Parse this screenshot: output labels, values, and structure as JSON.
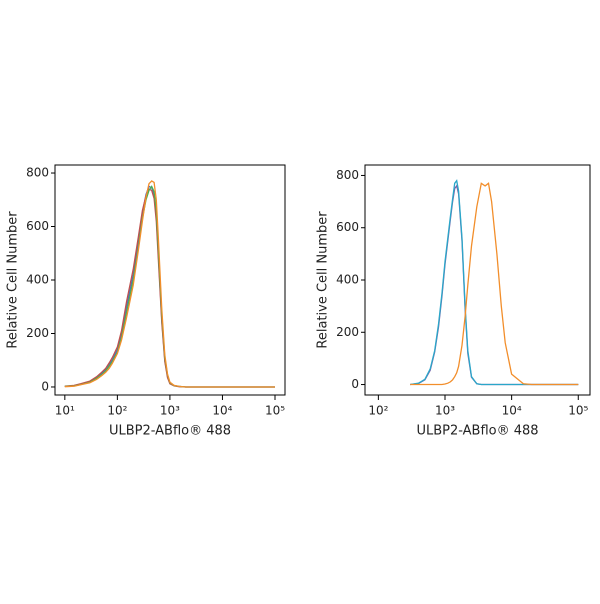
{
  "chart_data": [
    {
      "type": "line",
      "log_x": true,
      "xlabel": "ULBP2-ABflo® 488",
      "ylabel": "Relative Cell Number",
      "xlim": [
        6.5,
        155000
      ],
      "ylim": [
        -30,
        830
      ],
      "xticks": [
        {
          "value": 10,
          "label": "10¹"
        },
        {
          "value": 100,
          "label": "10²"
        },
        {
          "value": 1000,
          "label": "10³"
        },
        {
          "value": 10000,
          "label": "10⁴"
        },
        {
          "value": 100000,
          "label": "10⁵"
        }
      ],
      "yticks": [
        0,
        200,
        400,
        600,
        800
      ],
      "x": [
        10,
        15,
        20,
        30,
        40,
        50,
        60,
        70,
        80,
        100,
        120,
        150,
        200,
        250,
        300,
        350,
        400,
        450,
        500,
        550,
        600,
        700,
        800,
        900,
        1000,
        1200,
        1500,
        2000,
        5000,
        100000
      ],
      "series": [
        {
          "color": "#4a6fc4",
          "values": [
            2,
            5,
            10,
            20,
            35,
            50,
            65,
            85,
            100,
            140,
            200,
            300,
            420,
            540,
            650,
            720,
            750,
            745,
            720,
            640,
            500,
            250,
            100,
            40,
            15,
            5,
            2,
            0,
            0,
            0
          ]
        },
        {
          "color": "#c0504d",
          "values": [
            3,
            6,
            12,
            22,
            38,
            55,
            70,
            90,
            110,
            150,
            210,
            320,
            440,
            560,
            660,
            715,
            740,
            735,
            705,
            620,
            480,
            240,
            95,
            35,
            12,
            4,
            1,
            0,
            0,
            0
          ]
        },
        {
          "color": "#4caf50",
          "values": [
            2,
            4,
            9,
            18,
            32,
            46,
            60,
            78,
            95,
            130,
            185,
            280,
            400,
            520,
            630,
            700,
            735,
            750,
            730,
            660,
            520,
            270,
            110,
            45,
            16,
            5,
            2,
            0,
            0,
            0
          ]
        },
        {
          "color": "#f28e2b",
          "values": [
            1,
            3,
            8,
            16,
            28,
            42,
            55,
            70,
            88,
            125,
            175,
            260,
            380,
            510,
            620,
            710,
            760,
            770,
            765,
            700,
            560,
            290,
            120,
            48,
            18,
            6,
            2,
            0,
            0,
            0
          ]
        }
      ]
    },
    {
      "type": "line",
      "log_x": true,
      "xlabel": "ULBP2-ABflo® 488",
      "ylabel": "Relative Cell Number",
      "xlim": [
        63,
        150000
      ],
      "ylim": [
        -40,
        840
      ],
      "xticks": [
        {
          "value": 100,
          "label": "10²"
        },
        {
          "value": 1000,
          "label": "10³"
        },
        {
          "value": 10000,
          "label": "10⁴"
        },
        {
          "value": 100000,
          "label": "10⁵"
        }
      ],
      "yticks": [
        0,
        200,
        400,
        600,
        800
      ],
      "x": [
        300,
        400,
        500,
        600,
        700,
        800,
        900,
        1000,
        1100,
        1200,
        1300,
        1400,
        1500,
        1600,
        1800,
        2000,
        2200,
        2500,
        3000,
        3500,
        4000,
        4500,
        5000,
        6000,
        7000,
        8000,
        10000,
        15000,
        20000,
        100000
      ],
      "series": [
        {
          "color": "#7b5ea7",
          "values": [
            0,
            4,
            18,
            55,
            125,
            220,
            340,
            460,
            550,
            630,
            700,
            750,
            760,
            730,
            550,
            290,
            120,
            28,
            3,
            0,
            0,
            0,
            0,
            0,
            0,
            0,
            0,
            0,
            0,
            0
          ]
        },
        {
          "color": "#2aa7c9",
          "values": [
            0,
            5,
            20,
            60,
            130,
            230,
            350,
            470,
            560,
            640,
            710,
            770,
            780,
            740,
            560,
            300,
            130,
            30,
            3,
            0,
            0,
            0,
            0,
            0,
            0,
            0,
            0,
            0,
            0,
            0
          ]
        },
        {
          "color": "#f28e2b",
          "values": [
            0,
            0,
            0,
            0,
            0,
            0,
            0,
            2,
            5,
            10,
            18,
            30,
            45,
            70,
            150,
            260,
            380,
            530,
            680,
            770,
            760,
            770,
            700,
            500,
            300,
            160,
            40,
            3,
            0,
            0
          ]
        }
      ]
    }
  ]
}
